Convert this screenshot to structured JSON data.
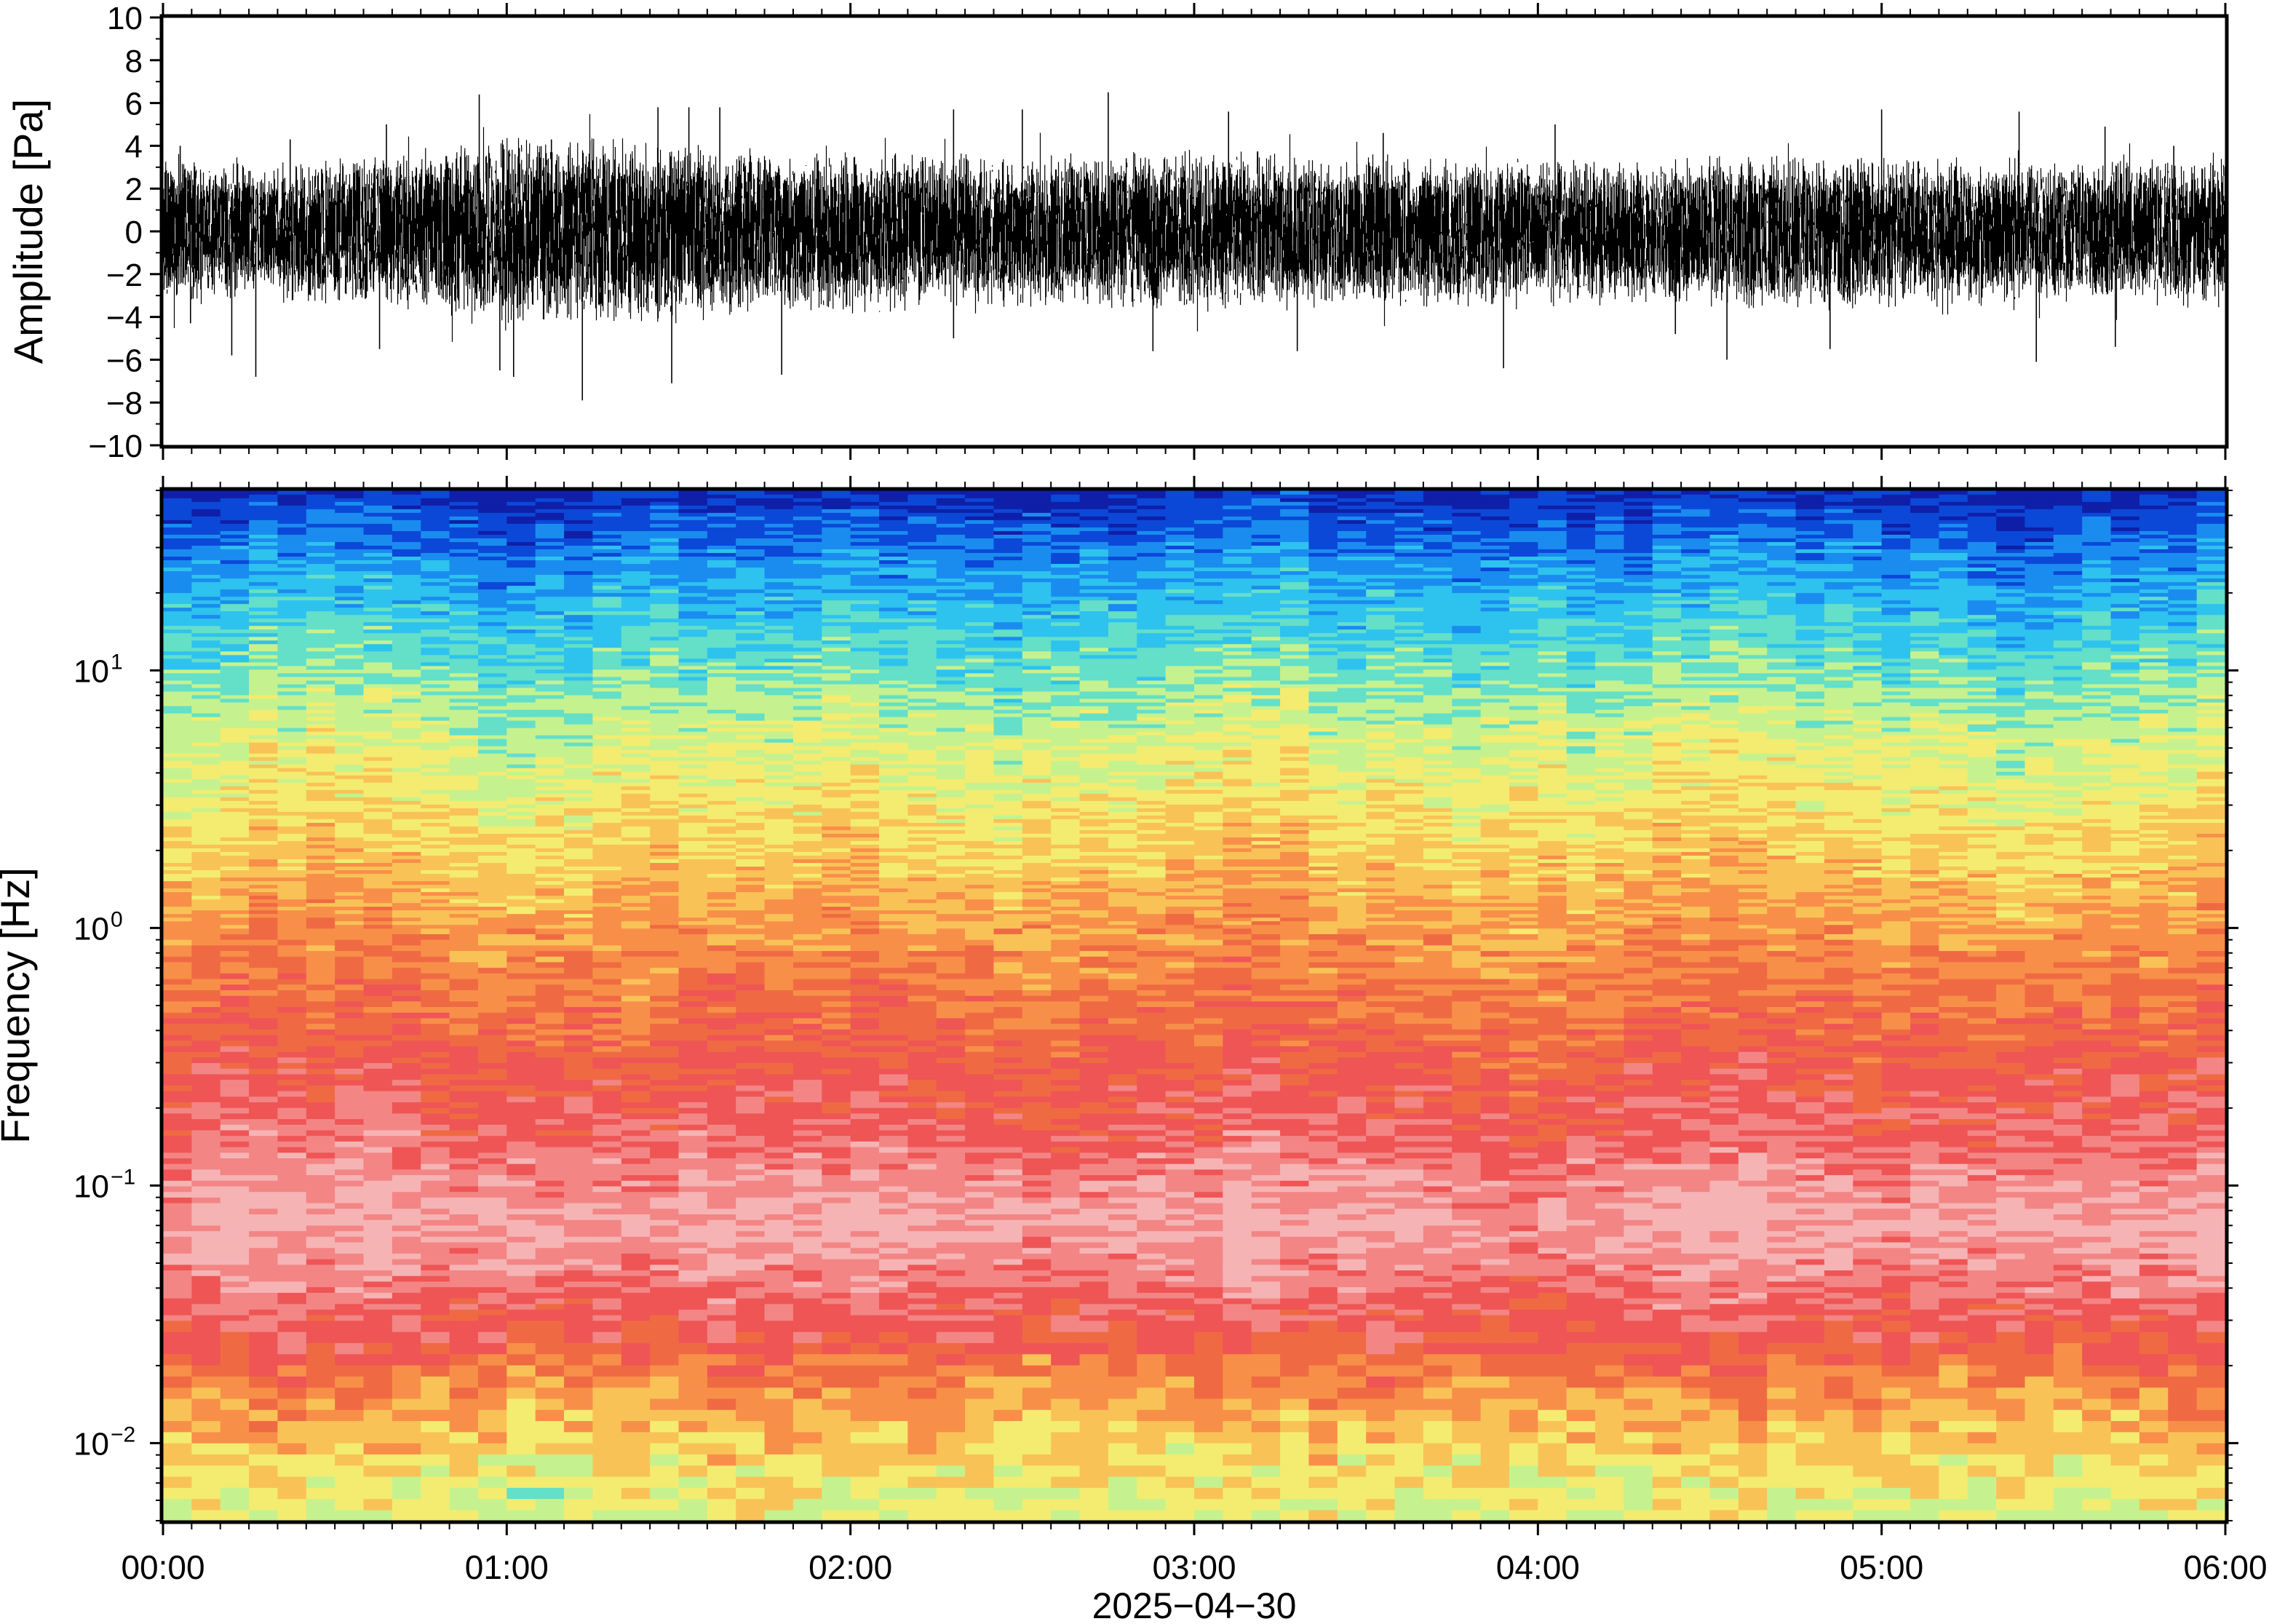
{
  "chart_data": [
    {
      "type": "line",
      "panel": "waveform",
      "ylabel": "Amplitude [Pa]",
      "ylim": [
        -10,
        10
      ],
      "yticks": [
        -10,
        -8,
        -6,
        -4,
        -2,
        0,
        2,
        4,
        6,
        8,
        10
      ],
      "ytick_labels": [
        "−10",
        "−8",
        "−6",
        "−4",
        "−2",
        "0",
        "2",
        "4",
        "6",
        "8",
        "10"
      ],
      "x_range_hours": [
        0,
        6
      ],
      "envelope": {
        "x_hours": [
          0.0,
          0.25,
          0.5,
          0.75,
          1.0,
          1.25,
          1.5,
          1.75,
          2.0,
          2.25,
          2.5,
          2.75,
          3.0,
          3.25,
          3.5,
          3.75,
          4.0,
          4.25,
          4.5,
          4.75,
          5.0,
          5.25,
          5.5,
          5.75,
          6.0
        ],
        "upper": [
          3.5,
          3.0,
          3.2,
          3.6,
          4.4,
          4.2,
          4.0,
          3.6,
          3.6,
          3.4,
          3.4,
          3.5,
          3.6,
          3.5,
          3.4,
          3.4,
          3.2,
          3.2,
          3.3,
          3.4,
          3.4,
          3.3,
          3.1,
          3.2,
          3.3
        ],
        "lower": [
          -3.5,
          -3.0,
          -3.3,
          -3.8,
          -4.4,
          -4.2,
          -4.0,
          -3.6,
          -3.6,
          -3.4,
          -3.4,
          -3.5,
          -3.6,
          -3.5,
          -3.4,
          -3.4,
          -3.3,
          -3.2,
          -3.3,
          -3.4,
          -3.4,
          -3.3,
          -3.1,
          -3.2,
          -3.3
        ]
      },
      "spikes": [
        {
          "x_hours": 0.05,
          "y": 4.0
        },
        {
          "x_hours": 0.08,
          "y": -4.3
        },
        {
          "x_hours": 0.2,
          "y": -5.8
        },
        {
          "x_hours": 0.27,
          "y": -6.8
        },
        {
          "x_hours": 0.37,
          "y": 4.3
        },
        {
          "x_hours": 0.63,
          "y": -5.5
        },
        {
          "x_hours": 0.65,
          "y": 5.0
        },
        {
          "x_hours": 0.92,
          "y": 6.4
        },
        {
          "x_hours": 0.98,
          "y": -6.5
        },
        {
          "x_hours": 1.02,
          "y": -6.8
        },
        {
          "x_hours": 1.13,
          "y": 4.3
        },
        {
          "x_hours": 1.22,
          "y": -7.9
        },
        {
          "x_hours": 1.44,
          "y": 5.8
        },
        {
          "x_hours": 1.48,
          "y": -7.1
        },
        {
          "x_hours": 1.53,
          "y": 5.8
        },
        {
          "x_hours": 1.62,
          "y": 5.8
        },
        {
          "x_hours": 1.8,
          "y": -6.7
        },
        {
          "x_hours": 2.3,
          "y": 5.7
        },
        {
          "x_hours": 2.3,
          "y": -5.0
        },
        {
          "x_hours": 2.5,
          "y": 5.7
        },
        {
          "x_hours": 2.75,
          "y": 6.5
        },
        {
          "x_hours": 2.88,
          "y": -5.6
        },
        {
          "x_hours": 3.1,
          "y": 5.6
        },
        {
          "x_hours": 3.3,
          "y": -5.6
        },
        {
          "x_hours": 3.55,
          "y": 4.6
        },
        {
          "x_hours": 3.9,
          "y": -6.4
        },
        {
          "x_hours": 4.05,
          "y": 5.0
        },
        {
          "x_hours": 4.4,
          "y": -4.8
        },
        {
          "x_hours": 4.55,
          "y": -6.0
        },
        {
          "x_hours": 4.85,
          "y": -5.5
        },
        {
          "x_hours": 5.0,
          "y": 5.7
        },
        {
          "x_hours": 5.4,
          "y": 5.6
        },
        {
          "x_hours": 5.45,
          "y": -6.1
        },
        {
          "x_hours": 5.65,
          "y": 4.9
        },
        {
          "x_hours": 5.68,
          "y": -5.4
        },
        {
          "x_hours": 5.85,
          "y": 4.0
        }
      ]
    },
    {
      "type": "heatmap",
      "panel": "spectrogram",
      "ylabel": "Frequency [Hz]",
      "yscale": "log",
      "ylim_hz": [
        0.005,
        50
      ],
      "yticks_hz": [
        0.01,
        0.1,
        1,
        10
      ],
      "ytick_labels": [
        {
          "base": "10",
          "exp": "−2"
        },
        {
          "base": "10",
          "exp": "−1"
        },
        {
          "base": "10",
          "exp": "0"
        },
        {
          "base": "10",
          "exp": "1"
        }
      ],
      "x_range_hours": [
        0,
        6
      ],
      "xticks": [
        "00:00",
        "01:00",
        "02:00",
        "03:00",
        "04:00",
        "05:00",
        "06:00"
      ],
      "xlabel": "2025−04−30",
      "colormap": "rainbow",
      "palette": [
        "#0f1fa8",
        "#0c48d8",
        "#1a8cef",
        "#2ec2ee",
        "#64dfc8",
        "#c5f28e",
        "#f3ec70",
        "#f9c257",
        "#f88f49",
        "#ef6a43",
        "#ef5555",
        "#f38585",
        "#f6b3b4"
      ],
      "frequency_profile": {
        "freq_hz": [
          50,
          40,
          30,
          20,
          10,
          5,
          2,
          1,
          0.5,
          0.25,
          0.15,
          0.1,
          0.07,
          0.05,
          0.035,
          0.025,
          0.018,
          0.012,
          0.008,
          0.005
        ],
        "color_index": [
          0.2,
          1.0,
          1.8,
          2.8,
          4.2,
          5.5,
          6.7,
          7.8,
          8.8,
          9.8,
          10.4,
          11.3,
          11.8,
          11.2,
          10.4,
          9.6,
          8.3,
          7.2,
          6.2,
          5.4
        ]
      }
    }
  ]
}
